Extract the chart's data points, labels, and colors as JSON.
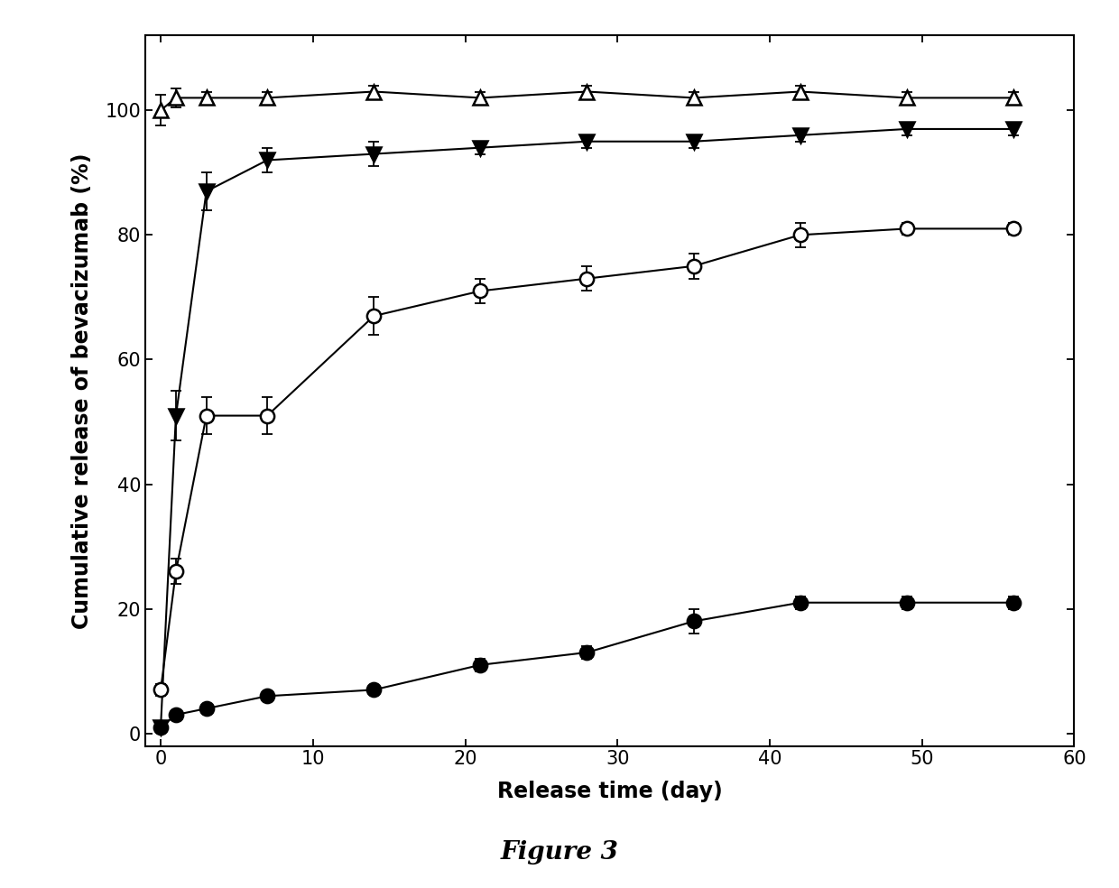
{
  "xlabel": "Release time (day)",
  "ylabel": "Cumulative release of bevacizumab (%)",
  "xlim": [
    -1,
    60
  ],
  "ylim": [
    -2,
    112
  ],
  "xticks": [
    0,
    10,
    20,
    30,
    40,
    50,
    60
  ],
  "yticks": [
    0,
    20,
    40,
    60,
    80,
    100
  ],
  "series": [
    {
      "label": "open_triangle",
      "x": [
        0,
        1,
        3,
        7,
        14,
        21,
        28,
        35,
        42,
        49,
        56
      ],
      "y": [
        100,
        102,
        102,
        102,
        103,
        102,
        103,
        102,
        103,
        102,
        102
      ],
      "yerr": [
        2.5,
        1.5,
        1,
        1,
        1,
        1,
        1,
        1,
        1,
        1,
        1
      ],
      "marker": "^",
      "fillstyle": "none",
      "color": "black",
      "linewidth": 1.5,
      "markersize": 11
    },
    {
      "label": "filled_triangle_down",
      "x": [
        0,
        1,
        3,
        7,
        14,
        21,
        28,
        35,
        42,
        49,
        56
      ],
      "y": [
        1,
        51,
        87,
        92,
        93,
        94,
        95,
        95,
        96,
        97,
        97
      ],
      "yerr": [
        0.5,
        4,
        3,
        2,
        2,
        1,
        1,
        1,
        1,
        1,
        1
      ],
      "marker": "v",
      "fillstyle": "full",
      "color": "black",
      "linewidth": 1.5,
      "markersize": 11
    },
    {
      "label": "open_circle",
      "x": [
        0,
        1,
        3,
        7,
        14,
        21,
        28,
        35,
        42,
        49,
        56
      ],
      "y": [
        7,
        26,
        51,
        51,
        67,
        71,
        73,
        75,
        80,
        81,
        81
      ],
      "yerr": [
        1,
        2,
        3,
        3,
        3,
        2,
        2,
        2,
        2,
        1,
        1
      ],
      "marker": "o",
      "fillstyle": "none",
      "color": "black",
      "linewidth": 1.5,
      "markersize": 11
    },
    {
      "label": "filled_circle",
      "x": [
        0,
        1,
        3,
        7,
        14,
        21,
        28,
        35,
        42,
        49,
        56
      ],
      "y": [
        1,
        3,
        4,
        6,
        7,
        11,
        13,
        18,
        21,
        21,
        21
      ],
      "yerr": [
        0.3,
        0.5,
        0.5,
        0.5,
        0.5,
        1,
        1,
        2,
        1,
        1,
        1
      ],
      "marker": "o",
      "fillstyle": "full",
      "color": "black",
      "linewidth": 1.5,
      "markersize": 11
    }
  ],
  "background_color": "#ffffff",
  "figure_label": "Figure 3",
  "figure_label_fontsize": 20,
  "axis_label_fontsize": 17,
  "tick_fontsize": 15
}
